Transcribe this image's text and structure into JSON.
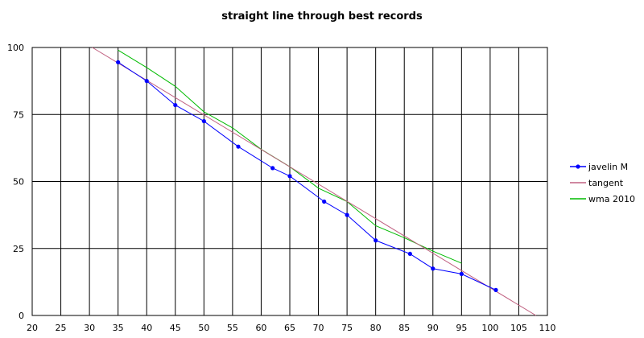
{
  "chart_data": {
    "type": "line",
    "title": "straight line through best records",
    "xlabel": "",
    "ylabel": "",
    "xlim": [
      20,
      110
    ],
    "ylim": [
      0,
      100
    ],
    "x_ticks": [
      20,
      25,
      30,
      35,
      40,
      45,
      50,
      55,
      60,
      65,
      70,
      75,
      80,
      85,
      90,
      95,
      100,
      105,
      110
    ],
    "y_ticks": [
      0,
      25,
      50,
      75,
      100
    ],
    "grid": true,
    "legend_position": "right",
    "series": [
      {
        "name": "javelin M",
        "color": "#0000ff",
        "markers": true,
        "points": [
          [
            35,
            94.5
          ],
          [
            40,
            87.5
          ],
          [
            45,
            78.5
          ],
          [
            50,
            72.5
          ],
          [
            56,
            63
          ],
          [
            62,
            55
          ],
          [
            65,
            52
          ],
          [
            71,
            42.5
          ],
          [
            75,
            37.5
          ],
          [
            80,
            28
          ],
          [
            86,
            23
          ],
          [
            90,
            17.5
          ],
          [
            95,
            15.5
          ],
          [
            101,
            9.5
          ]
        ]
      },
      {
        "name": "tangent",
        "color": "#c06080",
        "markers": false,
        "points": [
          [
            30.5,
            100
          ],
          [
            108,
            0
          ]
        ]
      },
      {
        "name": "wma 2010",
        "color": "#00bb00",
        "markers": false,
        "points": [
          [
            35,
            99
          ],
          [
            40,
            92.5
          ],
          [
            45,
            85.5
          ],
          [
            50,
            76
          ],
          [
            55,
            70
          ],
          [
            60,
            62
          ],
          [
            65,
            55.5
          ],
          [
            70,
            47.5
          ],
          [
            75,
            42.5
          ],
          [
            80,
            33.5
          ],
          [
            85,
            29
          ],
          [
            90,
            24
          ],
          [
            95,
            19.5
          ]
        ]
      }
    ]
  }
}
